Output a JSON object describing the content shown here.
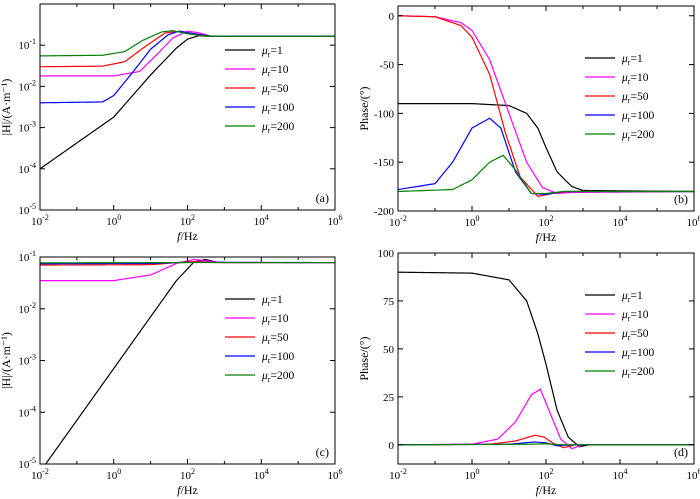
{
  "chart_data": [
    {
      "panel": "a",
      "type": "line",
      "panel_label": "(a)",
      "xlabel_var": "f",
      "xlabel_unit": "/Hz",
      "ylabel": "|H|/(A·m⁻¹)",
      "xscale": "log",
      "yscale": "log",
      "xlim": [
        0.01,
        1000000
      ],
      "ylim": [
        1e-05,
        1
      ],
      "xticks": [
        0.01,
        1,
        100,
        10000,
        1000000
      ],
      "yticks": [
        1e-05,
        0.0001,
        0.001,
        0.01,
        0.1
      ],
      "x_tick_exponents": [
        "-2",
        "0",
        "2",
        "4",
        "6"
      ],
      "y_tick_exponents": [
        "-5",
        "-4",
        "-3",
        "-2",
        "-1"
      ],
      "legend_position": "right-middle",
      "series": [
        {
          "name": "μr=1",
          "legend_var": "μ",
          "legend_sub": "r",
          "legend_val": "=1",
          "color": "#000000",
          "points": [
            [
              0.01,
              0.0001
            ],
            [
              1,
              0.0018
            ],
            [
              10,
              0.019
            ],
            [
              50,
              0.085
            ],
            [
              100,
              0.14
            ],
            [
              200,
              0.17
            ],
            [
              400,
              0.165
            ],
            [
              1000,
              0.165
            ],
            [
              1000000,
              0.165
            ]
          ]
        },
        {
          "name": "μr=10",
          "legend_var": "μ",
          "legend_sub": "r",
          "legend_val": "=10",
          "color": "#ff00ff",
          "points": [
            [
              0.01,
              0.018
            ],
            [
              1,
              0.018
            ],
            [
              5,
              0.023
            ],
            [
              15,
              0.06
            ],
            [
              40,
              0.15
            ],
            [
              100,
              0.22
            ],
            [
              200,
              0.2
            ],
            [
              400,
              0.168
            ],
            [
              1000,
              0.165
            ],
            [
              1000000,
              0.165
            ]
          ]
        },
        {
          "name": "μr=50",
          "legend_var": "μ",
          "legend_sub": "r",
          "legend_val": "=50",
          "color": "#ff0000",
          "points": [
            [
              0.01,
              0.03
            ],
            [
              0.5,
              0.031
            ],
            [
              2,
              0.04
            ],
            [
              8,
              0.1
            ],
            [
              25,
              0.2
            ],
            [
              60,
              0.215
            ],
            [
              150,
              0.19
            ],
            [
              400,
              0.167
            ],
            [
              1000,
              0.165
            ],
            [
              1000000,
              0.165
            ]
          ]
        },
        {
          "name": "μr=100",
          "legend_var": "μ",
          "legend_sub": "r",
          "legend_val": "=100",
          "color": "#0000ff",
          "points": [
            [
              0.01,
              0.004
            ],
            [
              0.5,
              0.0042
            ],
            [
              1,
              0.006
            ],
            [
              3,
              0.02
            ],
            [
              10,
              0.08
            ],
            [
              30,
              0.18
            ],
            [
              60,
              0.22
            ],
            [
              150,
              0.19
            ],
            [
              400,
              0.167
            ],
            [
              1000,
              0.165
            ],
            [
              1000000,
              0.165
            ]
          ]
        },
        {
          "name": "μr=200",
          "legend_var": "μ",
          "legend_sub": "r",
          "legend_val": "=200",
          "color": "#008000",
          "points": [
            [
              0.01,
              0.055
            ],
            [
              0.5,
              0.057
            ],
            [
              2,
              0.07
            ],
            [
              6,
              0.13
            ],
            [
              20,
              0.21
            ],
            [
              40,
              0.225
            ],
            [
              100,
              0.19
            ],
            [
              300,
              0.167
            ],
            [
              1000,
              0.165
            ],
            [
              1000000,
              0.165
            ]
          ]
        }
      ]
    },
    {
      "panel": "b",
      "type": "line",
      "panel_label": "(b)",
      "xlabel_var": "f",
      "xlabel_unit": "/Hz",
      "ylabel": "Phase/(°)",
      "xscale": "log",
      "yscale": "linear",
      "xlim": [
        0.01,
        1000000
      ],
      "ylim": [
        -200,
        10
      ],
      "xticks": [
        0.01,
        1,
        100,
        10000,
        1000000
      ],
      "yticks": [
        -200,
        -150,
        -100,
        -50,
        0
      ],
      "x_tick_exponents": [
        "-2",
        "0",
        "2",
        "4",
        "6"
      ],
      "y_tick_labels": [
        "-200",
        "-150",
        "-100",
        "-50",
        "0"
      ],
      "legend_position": "right-middle",
      "series": [
        {
          "name": "μr=1",
          "legend_var": "μ",
          "legend_sub": "r",
          "legend_val": "=1",
          "color": "#000000",
          "points": [
            [
              0.01,
              -90
            ],
            [
              1,
              -90
            ],
            [
              10,
              -92
            ],
            [
              30,
              -100
            ],
            [
              60,
              -115
            ],
            [
              100,
              -135
            ],
            [
              200,
              -160
            ],
            [
              500,
              -175
            ],
            [
              1000,
              -179
            ],
            [
              1000000,
              -180
            ]
          ]
        },
        {
          "name": "μr=10",
          "legend_var": "μ",
          "legend_sub": "r",
          "legend_val": "=10",
          "color": "#ff00ff",
          "points": [
            [
              0.01,
              0
            ],
            [
              0.1,
              -1
            ],
            [
              0.5,
              -7
            ],
            [
              1,
              -15
            ],
            [
              3,
              -45
            ],
            [
              10,
              -100
            ],
            [
              30,
              -150
            ],
            [
              80,
              -176
            ],
            [
              200,
              -182
            ],
            [
              500,
              -181
            ],
            [
              1000000,
              -180
            ]
          ]
        },
        {
          "name": "μr=50",
          "legend_var": "μ",
          "legend_sub": "r",
          "legend_val": "=50",
          "color": "#ff0000",
          "points": [
            [
              0.01,
              0
            ],
            [
              0.1,
              -1
            ],
            [
              0.5,
              -10
            ],
            [
              1,
              -22
            ],
            [
              3,
              -60
            ],
            [
              8,
              -120
            ],
            [
              20,
              -165
            ],
            [
              60,
              -185
            ],
            [
              150,
              -182
            ],
            [
              400,
              -180
            ],
            [
              1000000,
              -180
            ]
          ]
        },
        {
          "name": "μr=100",
          "legend_var": "μ",
          "legend_sub": "r",
          "legend_val": "=100",
          "color": "#0000ff",
          "points": [
            [
              0.01,
              -178
            ],
            [
              0.1,
              -172
            ],
            [
              0.3,
              -150
            ],
            [
              1,
              -115
            ],
            [
              3,
              -105
            ],
            [
              6,
              -115
            ],
            [
              15,
              -160
            ],
            [
              40,
              -182
            ],
            [
              100,
              -183
            ],
            [
              300,
              -180
            ],
            [
              1000000,
              -180
            ]
          ]
        },
        {
          "name": "μr=200",
          "legend_var": "μ",
          "legend_sub": "r",
          "legend_val": "=200",
          "color": "#008000",
          "points": [
            [
              0.01,
              -180
            ],
            [
              0.3,
              -178
            ],
            [
              1,
              -168
            ],
            [
              3,
              -150
            ],
            [
              7,
              -143
            ],
            [
              15,
              -158
            ],
            [
              40,
              -182
            ],
            [
              100,
              -182
            ],
            [
              300,
              -180
            ],
            [
              1000000,
              -180
            ]
          ]
        }
      ]
    },
    {
      "panel": "c",
      "type": "line",
      "panel_label": "(c)",
      "xlabel_var": "f",
      "xlabel_unit": "/Hz",
      "ylabel": "|H|/(A·m⁻¹)",
      "xscale": "log",
      "yscale": "log",
      "xlim": [
        0.01,
        1000000
      ],
      "ylim": [
        1e-05,
        0.1
      ],
      "xticks": [
        0.01,
        1,
        100,
        10000,
        1000000
      ],
      "yticks": [
        1e-05,
        0.0001,
        0.001,
        0.01,
        0.1
      ],
      "x_tick_exponents": [
        "-2",
        "0",
        "2",
        "4",
        "6"
      ],
      "y_tick_exponents": [
        "-5",
        "-4",
        "-3",
        "-2",
        "-1"
      ],
      "legend_position": "right-middle",
      "series": [
        {
          "name": "μr=1",
          "legend_var": "μ",
          "legend_sub": "r",
          "legend_val": "=1",
          "color": "#000000",
          "points": [
            [
              0.01,
              7e-06
            ],
            [
              1,
              0.0007
            ],
            [
              10,
              0.007
            ],
            [
              50,
              0.035
            ],
            [
              150,
              0.08
            ],
            [
              300,
              0.09
            ],
            [
              600,
              0.08
            ],
            [
              1000,
              0.078
            ],
            [
              1000000,
              0.078
            ]
          ]
        },
        {
          "name": "μr=10",
          "legend_var": "μ",
          "legend_sub": "r",
          "legend_val": "=10",
          "color": "#ff00ff",
          "points": [
            [
              0.01,
              0.035
            ],
            [
              1,
              0.035
            ],
            [
              10,
              0.045
            ],
            [
              50,
              0.075
            ],
            [
              150,
              0.09
            ],
            [
              300,
              0.085
            ],
            [
              800,
              0.078
            ],
            [
              1000000,
              0.078
            ]
          ]
        },
        {
          "name": "μr=50",
          "legend_var": "μ",
          "legend_sub": "r",
          "legend_val": "=50",
          "color": "#ff0000",
          "points": [
            [
              0.01,
              0.07
            ],
            [
              10,
              0.071
            ],
            [
              80,
              0.08
            ],
            [
              200,
              0.082
            ],
            [
              600,
              0.078
            ],
            [
              1000000,
              0.078
            ]
          ]
        },
        {
          "name": "μr=100",
          "legend_var": "μ",
          "legend_sub": "r",
          "legend_val": "=100",
          "color": "#0000ff",
          "points": [
            [
              0.01,
              0.074
            ],
            [
              10,
              0.075
            ],
            [
              100,
              0.079
            ],
            [
              300,
              0.079
            ],
            [
              1000000,
              0.078
            ]
          ]
        },
        {
          "name": "μr=200",
          "legend_var": "μ",
          "legend_sub": "r",
          "legend_val": "=200",
          "color": "#008000",
          "points": [
            [
              0.01,
              0.077
            ],
            [
              100,
              0.078
            ],
            [
              1000000,
              0.078
            ]
          ]
        }
      ]
    },
    {
      "panel": "d",
      "type": "line",
      "panel_label": "(d)",
      "xlabel_var": "f",
      "xlabel_unit": "/Hz",
      "ylabel": "Phase/(°)",
      "xscale": "log",
      "yscale": "linear",
      "xlim": [
        0.01,
        1000000
      ],
      "ylim": [
        -10,
        100
      ],
      "xticks": [
        0.01,
        1,
        100,
        10000,
        1000000
      ],
      "yticks": [
        0,
        25,
        50,
        75,
        100
      ],
      "x_tick_exponents": [
        "-2",
        "0",
        "2",
        "4",
        "6"
      ],
      "y_tick_labels": [
        "0",
        "25",
        "50",
        "75",
        "100"
      ],
      "legend_position": "right-top",
      "series": [
        {
          "name": "μr=1",
          "legend_var": "μ",
          "legend_sub": "r",
          "legend_val": "=1",
          "color": "#000000",
          "points": [
            [
              0.01,
              90
            ],
            [
              1,
              89.5
            ],
            [
              10,
              86
            ],
            [
              30,
              75
            ],
            [
              60,
              58
            ],
            [
              100,
              42
            ],
            [
              200,
              18
            ],
            [
              400,
              4
            ],
            [
              800,
              -1
            ],
            [
              1500,
              0
            ],
            [
              1000000,
              0
            ]
          ]
        },
        {
          "name": "μr=10",
          "legend_var": "μ",
          "legend_sub": "r",
          "legend_val": "=10",
          "color": "#ff00ff",
          "points": [
            [
              0.01,
              0
            ],
            [
              1,
              0.3
            ],
            [
              5,
              3
            ],
            [
              15,
              12
            ],
            [
              40,
              26
            ],
            [
              70,
              29
            ],
            [
              120,
              18
            ],
            [
              250,
              3
            ],
            [
              500,
              -2
            ],
            [
              1000,
              0
            ],
            [
              1000000,
              0
            ]
          ]
        },
        {
          "name": "μr=50",
          "legend_var": "μ",
          "legend_sub": "r",
          "legend_val": "=50",
          "color": "#ff0000",
          "points": [
            [
              0.01,
              0
            ],
            [
              3,
              0.3
            ],
            [
              15,
              2
            ],
            [
              50,
              5
            ],
            [
              90,
              4
            ],
            [
              150,
              1
            ],
            [
              300,
              -1.5
            ],
            [
              600,
              0
            ],
            [
              1000000,
              0
            ]
          ]
        },
        {
          "name": "μr=100",
          "legend_var": "μ",
          "legend_sub": "r",
          "legend_val": "=100",
          "color": "#0000ff",
          "points": [
            [
              0.01,
              0
            ],
            [
              10,
              0.3
            ],
            [
              50,
              1.5
            ],
            [
              100,
              1
            ],
            [
              200,
              -0.5
            ],
            [
              500,
              0
            ],
            [
              1000000,
              0
            ]
          ]
        },
        {
          "name": "μr=200",
          "legend_var": "μ",
          "legend_sub": "r",
          "legend_val": "=200",
          "color": "#008000",
          "points": [
            [
              0.01,
              0
            ],
            [
              30,
              0.3
            ],
            [
              100,
              0.5
            ],
            [
              300,
              0
            ],
            [
              1000000,
              0
            ]
          ]
        }
      ]
    }
  ]
}
